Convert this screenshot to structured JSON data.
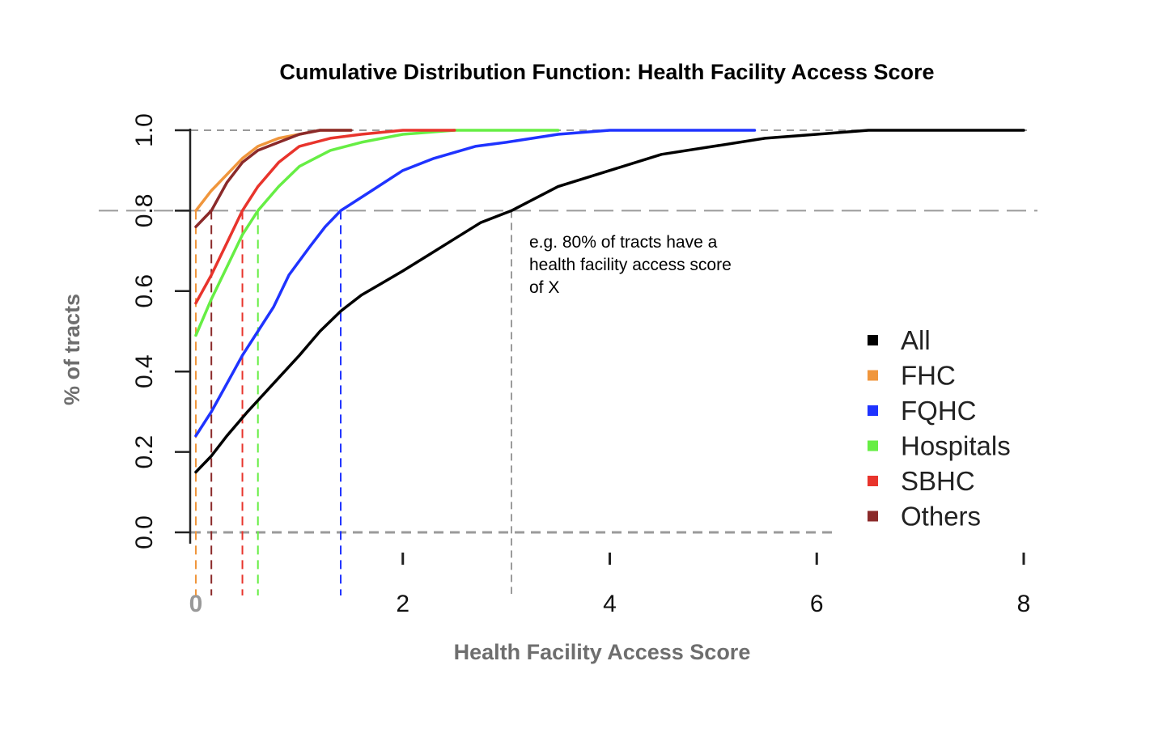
{
  "chart_data": {
    "type": "line",
    "title": "Cumulative Distribution Function: Health Facility Access Score",
    "xlabel": "Health Facility Access Score",
    "ylabel": "% of tracts",
    "xlim": [
      0,
      8
    ],
    "ylim": [
      0,
      1
    ],
    "x_ticks": [
      0,
      2,
      4,
      6,
      8
    ],
    "x_tick_labels": [
      "0",
      "2",
      "4",
      "6",
      "8"
    ],
    "y_ticks": [
      0,
      0.2,
      0.4,
      0.6,
      0.8,
      1.0
    ],
    "y_tick_labels": [
      "0.0",
      "0.2",
      "0.4",
      "0.6",
      "0.8",
      "1.0"
    ],
    "legend_position": "right",
    "reference_line_y": 0.8,
    "annotation": {
      "lines": [
        "e.g. 80% of tracts have a",
        "health facility access score",
        "of X"
      ],
      "x": 3.2,
      "y": 0.74
    },
    "series": [
      {
        "name": "All",
        "color": "#000000",
        "x80": 3.05,
        "points": [
          [
            0,
            0.15
          ],
          [
            0.15,
            0.19
          ],
          [
            0.3,
            0.24
          ],
          [
            0.5,
            0.3
          ],
          [
            0.75,
            0.37
          ],
          [
            1.0,
            0.44
          ],
          [
            1.2,
            0.5
          ],
          [
            1.4,
            0.55
          ],
          [
            1.6,
            0.59
          ],
          [
            1.8,
            0.62
          ],
          [
            2.0,
            0.65
          ],
          [
            2.25,
            0.69
          ],
          [
            2.5,
            0.73
          ],
          [
            2.75,
            0.77
          ],
          [
            3.05,
            0.8
          ],
          [
            3.5,
            0.86
          ],
          [
            4.0,
            0.9
          ],
          [
            4.5,
            0.94
          ],
          [
            5.0,
            0.96
          ],
          [
            5.5,
            0.98
          ],
          [
            6.0,
            0.99
          ],
          [
            6.5,
            1.0
          ],
          [
            8.0,
            1.0
          ]
        ]
      },
      {
        "name": "FHC",
        "color": "#f0963c",
        "x80": 0.0,
        "points": [
          [
            0,
            0.8
          ],
          [
            0.15,
            0.85
          ],
          [
            0.3,
            0.89
          ],
          [
            0.45,
            0.93
          ],
          [
            0.6,
            0.96
          ],
          [
            0.8,
            0.98
          ],
          [
            1.0,
            0.99
          ],
          [
            1.2,
            1.0
          ],
          [
            1.5,
            1.0
          ]
        ]
      },
      {
        "name": "FQHC",
        "color": "#1f33ff",
        "x80": 1.4,
        "points": [
          [
            0,
            0.24
          ],
          [
            0.15,
            0.3
          ],
          [
            0.3,
            0.37
          ],
          [
            0.45,
            0.44
          ],
          [
            0.6,
            0.5
          ],
          [
            0.75,
            0.56
          ],
          [
            0.9,
            0.64
          ],
          [
            1.1,
            0.71
          ],
          [
            1.25,
            0.76
          ],
          [
            1.4,
            0.8
          ],
          [
            1.7,
            0.85
          ],
          [
            2.0,
            0.9
          ],
          [
            2.3,
            0.93
          ],
          [
            2.7,
            0.96
          ],
          [
            3.0,
            0.97
          ],
          [
            3.5,
            0.99
          ],
          [
            4.0,
            1.0
          ],
          [
            5.4,
            1.0
          ]
        ]
      },
      {
        "name": "Hospitals",
        "color": "#66ee44",
        "x80": 0.6,
        "points": [
          [
            0,
            0.49
          ],
          [
            0.15,
            0.58
          ],
          [
            0.3,
            0.66
          ],
          [
            0.45,
            0.74
          ],
          [
            0.6,
            0.8
          ],
          [
            0.8,
            0.86
          ],
          [
            1.0,
            0.91
          ],
          [
            1.3,
            0.95
          ],
          [
            1.6,
            0.97
          ],
          [
            2.0,
            0.99
          ],
          [
            2.5,
            1.0
          ],
          [
            3.5,
            1.0
          ]
        ]
      },
      {
        "name": "SBHC",
        "color": "#e8342c",
        "x80": 0.45,
        "points": [
          [
            0,
            0.57
          ],
          [
            0.15,
            0.64
          ],
          [
            0.3,
            0.72
          ],
          [
            0.45,
            0.8
          ],
          [
            0.6,
            0.86
          ],
          [
            0.8,
            0.92
          ],
          [
            1.0,
            0.96
          ],
          [
            1.3,
            0.98
          ],
          [
            1.6,
            0.99
          ],
          [
            2.0,
            1.0
          ],
          [
            2.5,
            1.0
          ]
        ]
      },
      {
        "name": "Others",
        "color": "#8b2a2a",
        "x80": 0.15,
        "points": [
          [
            0,
            0.76
          ],
          [
            0.15,
            0.8
          ],
          [
            0.3,
            0.87
          ],
          [
            0.45,
            0.92
          ],
          [
            0.6,
            0.95
          ],
          [
            0.8,
            0.97
          ],
          [
            1.0,
            0.99
          ],
          [
            1.2,
            1.0
          ],
          [
            1.5,
            1.0
          ]
        ]
      }
    ]
  }
}
